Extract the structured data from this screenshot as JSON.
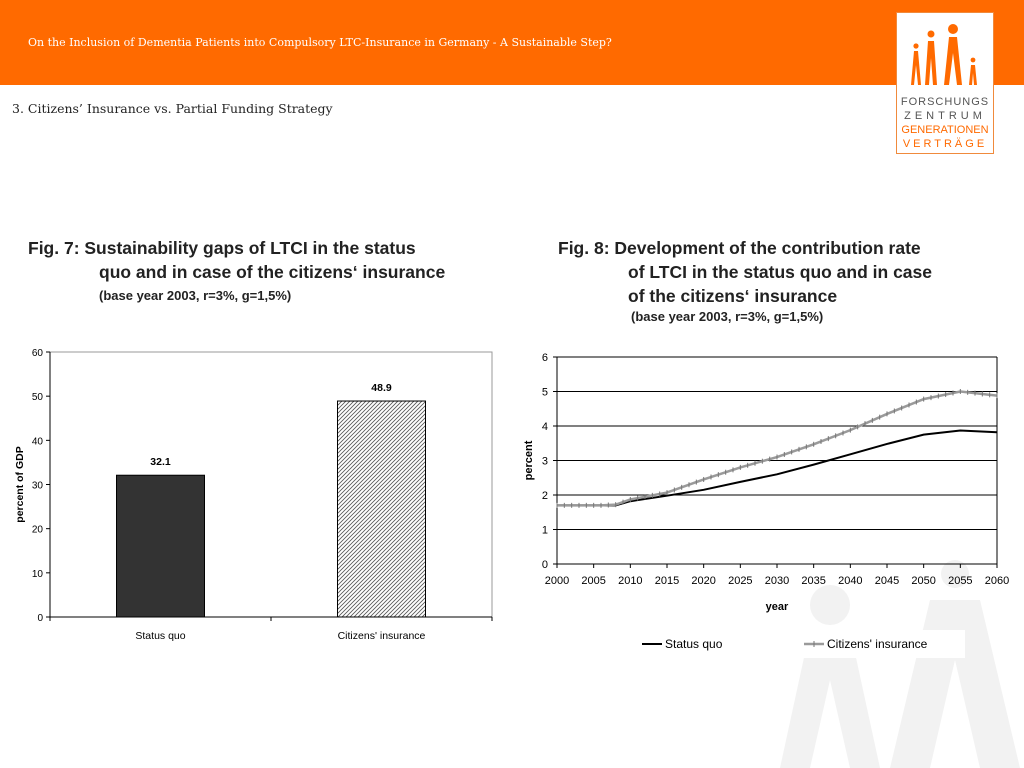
{
  "header": {
    "title": "On the Inclusion of Dementia Patients into Compulsory LTC-Insurance in Germany - A Sustainable Step?",
    "section": "3.  Citizens’ Insurance vs. Partial Funding Strategy"
  },
  "logo": {
    "line1": "FORSCHUNGS",
    "line2": "ZENTRUM",
    "line3": "GENERATIONEN",
    "line4": "VERTRÄGE",
    "accent": "#ff6a00"
  },
  "colors": {
    "accent": "#ff6a00",
    "bar_status_quo": "#333333",
    "line_citizens": "#9a9a9a"
  },
  "fig7": {
    "title_line1": "Fig. 7:  Sustainability gaps of LTCI in the status",
    "title_line2": "quo and in case of the citizens‘ insurance",
    "note": "(base year 2003, r=3%, g=1,5%)"
  },
  "fig8": {
    "title_line1": "Fig. 8:  Development of the contribution rate",
    "title_line2": "of LTCI in the status quo and in case",
    "title_line3": "of the citizens‘ insurance",
    "note": "(base year 2003, r=3%, g=1,5%)"
  },
  "chart_data": [
    {
      "type": "bar",
      "categories": [
        "Status quo",
        "Citizens' insurance"
      ],
      "values": [
        32.1,
        48.9
      ],
      "data_labels": [
        "32.1",
        "48.9"
      ],
      "ylabel": "percent of GDP",
      "xlabel": "",
      "ylim": [
        0,
        60
      ],
      "yticks": [
        0,
        10,
        20,
        30,
        40,
        50,
        60
      ],
      "grid": false
    },
    {
      "type": "line",
      "x": [
        2000,
        2002,
        2004,
        2006,
        2008,
        2010,
        2015,
        2020,
        2025,
        2030,
        2035,
        2040,
        2045,
        2050,
        2055,
        2060
      ],
      "series": [
        {
          "name": "Status quo",
          "values": [
            1.7,
            1.7,
            1.7,
            1.7,
            1.7,
            1.82,
            1.98,
            2.15,
            2.38,
            2.6,
            2.88,
            3.18,
            3.48,
            3.75,
            3.87,
            3.82
          ]
        },
        {
          "name": "Citizens' insurance",
          "values": [
            1.7,
            1.7,
            1.7,
            1.7,
            1.72,
            1.87,
            2.07,
            2.45,
            2.8,
            3.1,
            3.47,
            3.88,
            4.35,
            4.78,
            5.0,
            4.88
          ]
        }
      ],
      "xlabel": "year",
      "ylabel": "percent",
      "xlim": [
        2000,
        2060
      ],
      "ylim": [
        0,
        6
      ],
      "xticks": [
        2000,
        2005,
        2010,
        2015,
        2020,
        2025,
        2030,
        2035,
        2040,
        2045,
        2050,
        2055,
        2060
      ],
      "yticks": [
        0,
        1,
        2,
        3,
        4,
        5,
        6
      ],
      "grid": true,
      "legend_position": "bottom"
    }
  ]
}
